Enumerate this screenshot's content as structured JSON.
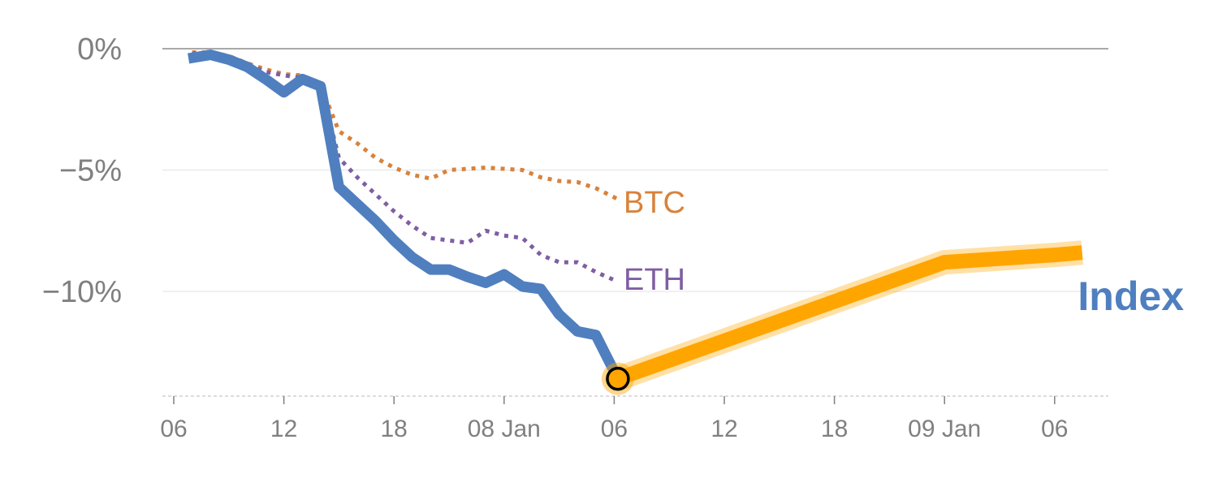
{
  "chart_data": {
    "type": "line",
    "title": "",
    "xlabel": "",
    "ylabel": "",
    "ylim": [
      -14.2,
      0
    ],
    "y_ticks": [
      {
        "value": 0,
        "label": "0%"
      },
      {
        "value": -5,
        "label": "−5%"
      },
      {
        "value": -10,
        "label": "−10%"
      }
    ],
    "x_ticks": [
      {
        "hour": 0,
        "label": "06"
      },
      {
        "hour": 6,
        "label": "12"
      },
      {
        "hour": 12,
        "label": "18"
      },
      {
        "hour": 18,
        "label": "08 Jan"
      },
      {
        "hour": 24,
        "label": "06"
      },
      {
        "hour": 30,
        "label": "12"
      },
      {
        "hour": 36,
        "label": "18"
      },
      {
        "hour": 42,
        "label": "09 Jan"
      },
      {
        "hour": 48,
        "label": "06"
      }
    ],
    "series": [
      {
        "name": "BTC",
        "color": "#d9823b",
        "style": "dotted",
        "x": [
          1,
          2,
          3,
          4,
          5,
          6,
          7,
          8,
          9,
          10,
          11,
          12,
          13,
          14,
          15,
          16,
          17,
          18,
          19,
          20,
          21,
          22,
          23,
          24.2
        ],
        "values": [
          -0.15,
          -0.15,
          -0.3,
          -0.6,
          -0.85,
          -1.05,
          -1.1,
          -1.5,
          -3.4,
          -3.9,
          -4.5,
          -4.9,
          -5.2,
          -5.35,
          -5.0,
          -4.95,
          -4.9,
          -4.95,
          -5.0,
          -5.3,
          -5.45,
          -5.5,
          -5.75,
          -6.2
        ]
      },
      {
        "name": "ETH",
        "color": "#7f5ea3",
        "style": "dotted",
        "x": [
          1,
          2,
          3,
          4,
          5,
          6,
          7,
          8,
          9,
          10,
          11,
          12,
          13,
          14,
          15,
          16,
          17,
          18,
          19,
          20,
          21,
          22,
          23,
          24.2
        ],
        "values": [
          -0.2,
          -0.15,
          -0.35,
          -0.65,
          -0.95,
          -1.1,
          -1.2,
          -1.5,
          -4.5,
          -5.3,
          -6.0,
          -6.7,
          -7.3,
          -7.8,
          -7.9,
          -8.0,
          -7.5,
          -7.7,
          -7.8,
          -8.5,
          -8.8,
          -8.8,
          -9.2,
          -9.6
        ]
      },
      {
        "name": "Index",
        "color": "#4f7fbf",
        "style": "solid",
        "x": [
          0.8,
          2,
          3,
          4,
          5,
          6,
          7,
          8,
          9,
          10,
          11,
          12,
          13,
          14,
          15,
          16,
          17,
          18,
          19,
          20,
          21,
          22,
          23,
          24.2
        ],
        "values": [
          -0.4,
          -0.25,
          -0.45,
          -0.75,
          -1.25,
          -1.8,
          -1.25,
          -1.55,
          -5.7,
          -6.4,
          -7.1,
          -7.9,
          -8.6,
          -9.1,
          -9.1,
          -9.4,
          -9.65,
          -9.3,
          -9.8,
          -9.9,
          -10.95,
          -11.65,
          -11.8,
          -13.6
        ]
      },
      {
        "name": "",
        "color": "#ffa500",
        "style": "highlight",
        "x": [
          24.2,
          42,
          48,
          49.5
        ],
        "values": [
          -13.6,
          -8.8,
          -8.5,
          -8.4
        ]
      }
    ],
    "marker": {
      "x": 24.2,
      "value": -13.6
    },
    "labels": {
      "btc": "BTC",
      "eth": "ETH",
      "index": "Index"
    }
  }
}
